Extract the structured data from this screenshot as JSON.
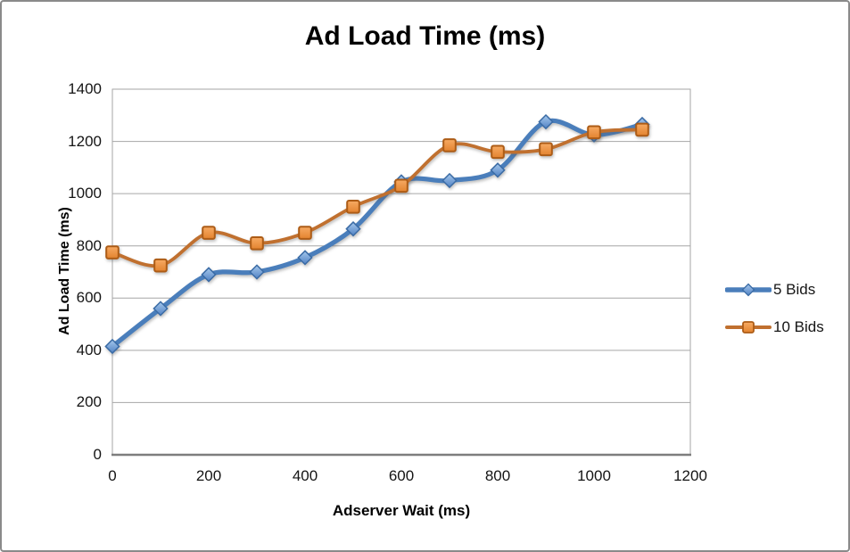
{
  "chart_data": {
    "type": "line",
    "title": "Ad Load Time (ms)",
    "xlabel": "Adserver Wait (ms)",
    "ylabel": "Ad Load Time (ms)",
    "x": [
      0,
      100,
      200,
      300,
      400,
      500,
      600,
      700,
      800,
      900,
      1000,
      1100
    ],
    "series": [
      {
        "name": "5 Bids",
        "marker": "diamond",
        "color": "#4A7EBB",
        "marker_fill_top": "#A6C8EC",
        "marker_fill_bottom": "#5182C4",
        "marker_stroke": "#3A6BA5",
        "values": [
          415,
          560,
          690,
          700,
          755,
          865,
          1045,
          1050,
          1090,
          1275,
          1225,
          1265
        ]
      },
      {
        "name": "10 Bids",
        "marker": "square",
        "color": "#C0702F",
        "marker_fill_top": "#F7AB64",
        "marker_fill_bottom": "#E3832F",
        "marker_stroke": "#AD5C16",
        "values": [
          775,
          725,
          850,
          810,
          850,
          950,
          1030,
          1185,
          1160,
          1170,
          1235,
          1245
        ]
      }
    ],
    "xlim": [
      0,
      1200
    ],
    "ylim": [
      0,
      1400
    ],
    "x_ticks": [
      0,
      200,
      400,
      600,
      800,
      1000,
      1200
    ],
    "y_ticks": [
      0,
      200,
      400,
      600,
      800,
      1000,
      1200,
      1400
    ],
    "smoothed": true,
    "grid": "horizontal",
    "legend_position": "right-middle",
    "axis_colors": {
      "gridline": "#A6A6A6",
      "plot_border": "#A6A6A6",
      "baseline": "#7D7D7D",
      "text": "#151515"
    }
  }
}
